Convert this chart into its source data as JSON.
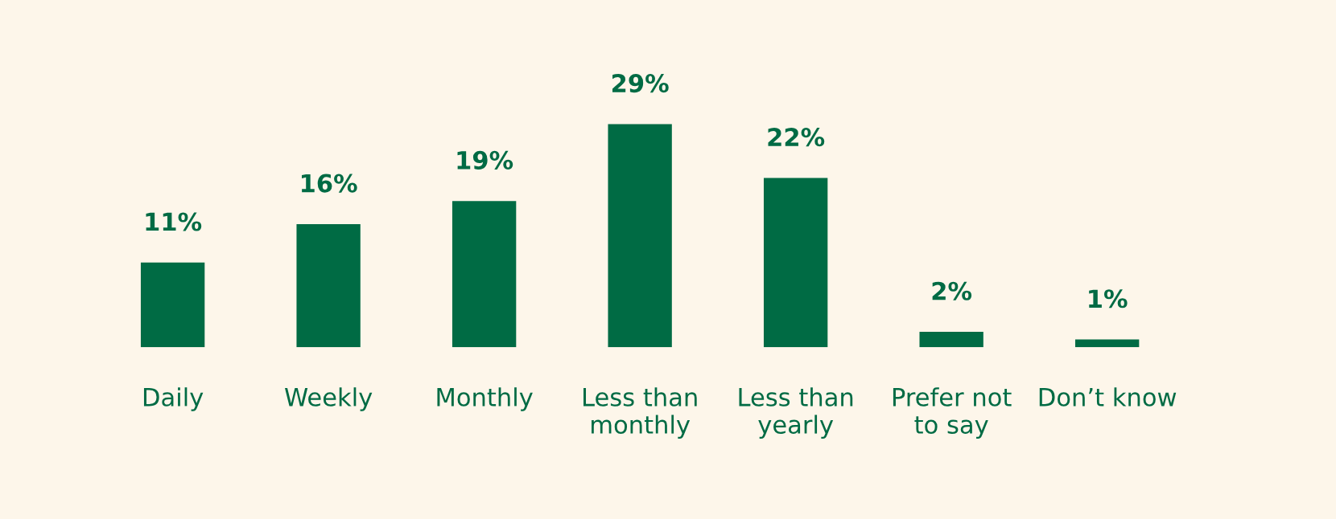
{
  "chart_data": {
    "type": "bar",
    "categories": [
      "Daily",
      "Weekly",
      "Monthly",
      "Less than\nmonthly",
      "Less than\nyearly",
      "Prefer not\nto say",
      "Don’t know"
    ],
    "values": [
      11,
      16,
      19,
      29,
      22,
      2,
      1
    ],
    "value_labels": [
      "11%",
      "16%",
      "19%",
      "29%",
      "22%",
      "2%",
      "1%"
    ],
    "color": "#006b44",
    "grid": false,
    "legend": false
  }
}
